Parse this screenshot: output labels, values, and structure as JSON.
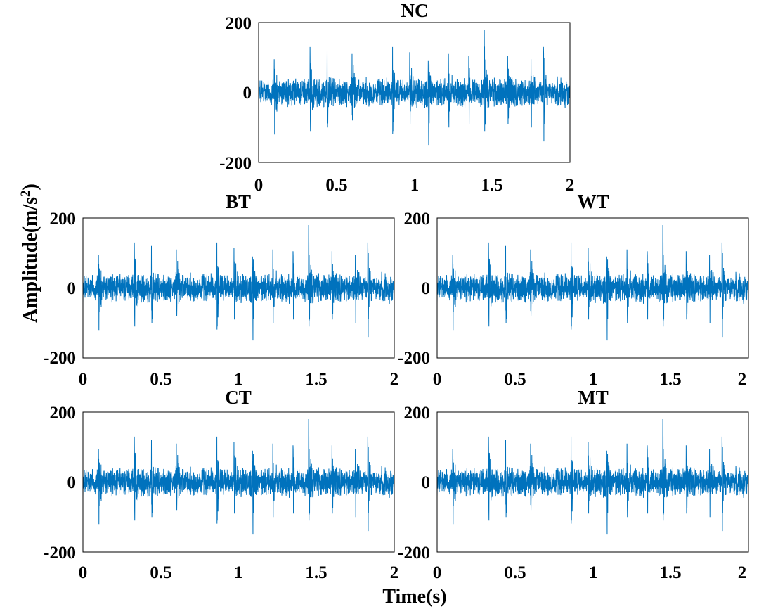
{
  "chart_data": {
    "type": "line",
    "shared_xlabel": "Time(s)",
    "shared_ylabel": "Amplitude(m/s",
    "shared_ylabel_superscript": "2",
    "shared_ylabel_suffix": ")",
    "series_color": "#0072BD",
    "xlim": [
      0,
      2
    ],
    "ylim": [
      -200,
      200
    ],
    "xticks": [
      0,
      0.5,
      1,
      1.5,
      2
    ],
    "yticks": [
      -200,
      0,
      200
    ],
    "xtick_labels": [
      "0",
      "0.5",
      "1",
      "1.5",
      "2"
    ],
    "ytick_labels": [
      "-200",
      "0",
      "200"
    ],
    "grid": false,
    "signal_description": "vibration acceleration time series, dense noise of about ±40 with periodic impulse spikes",
    "impulse_times": [
      0.1,
      0.33,
      0.44,
      0.6,
      0.86,
      0.97,
      1.09,
      1.22,
      1.35,
      1.45,
      1.6,
      1.75,
      1.83
    ],
    "impulse_peaks": [
      95,
      130,
      120,
      110,
      130,
      115,
      90,
      110,
      105,
      180,
      105,
      95,
      130
    ],
    "impulse_troughs": [
      -120,
      -110,
      -100,
      -80,
      -110,
      -90,
      -150,
      -100,
      -90,
      -110,
      -90,
      -100,
      -140
    ],
    "panels": [
      {
        "title": "NC"
      },
      {
        "title": "BT"
      },
      {
        "title": "WT"
      },
      {
        "title": "CT"
      },
      {
        "title": "MT"
      }
    ]
  }
}
